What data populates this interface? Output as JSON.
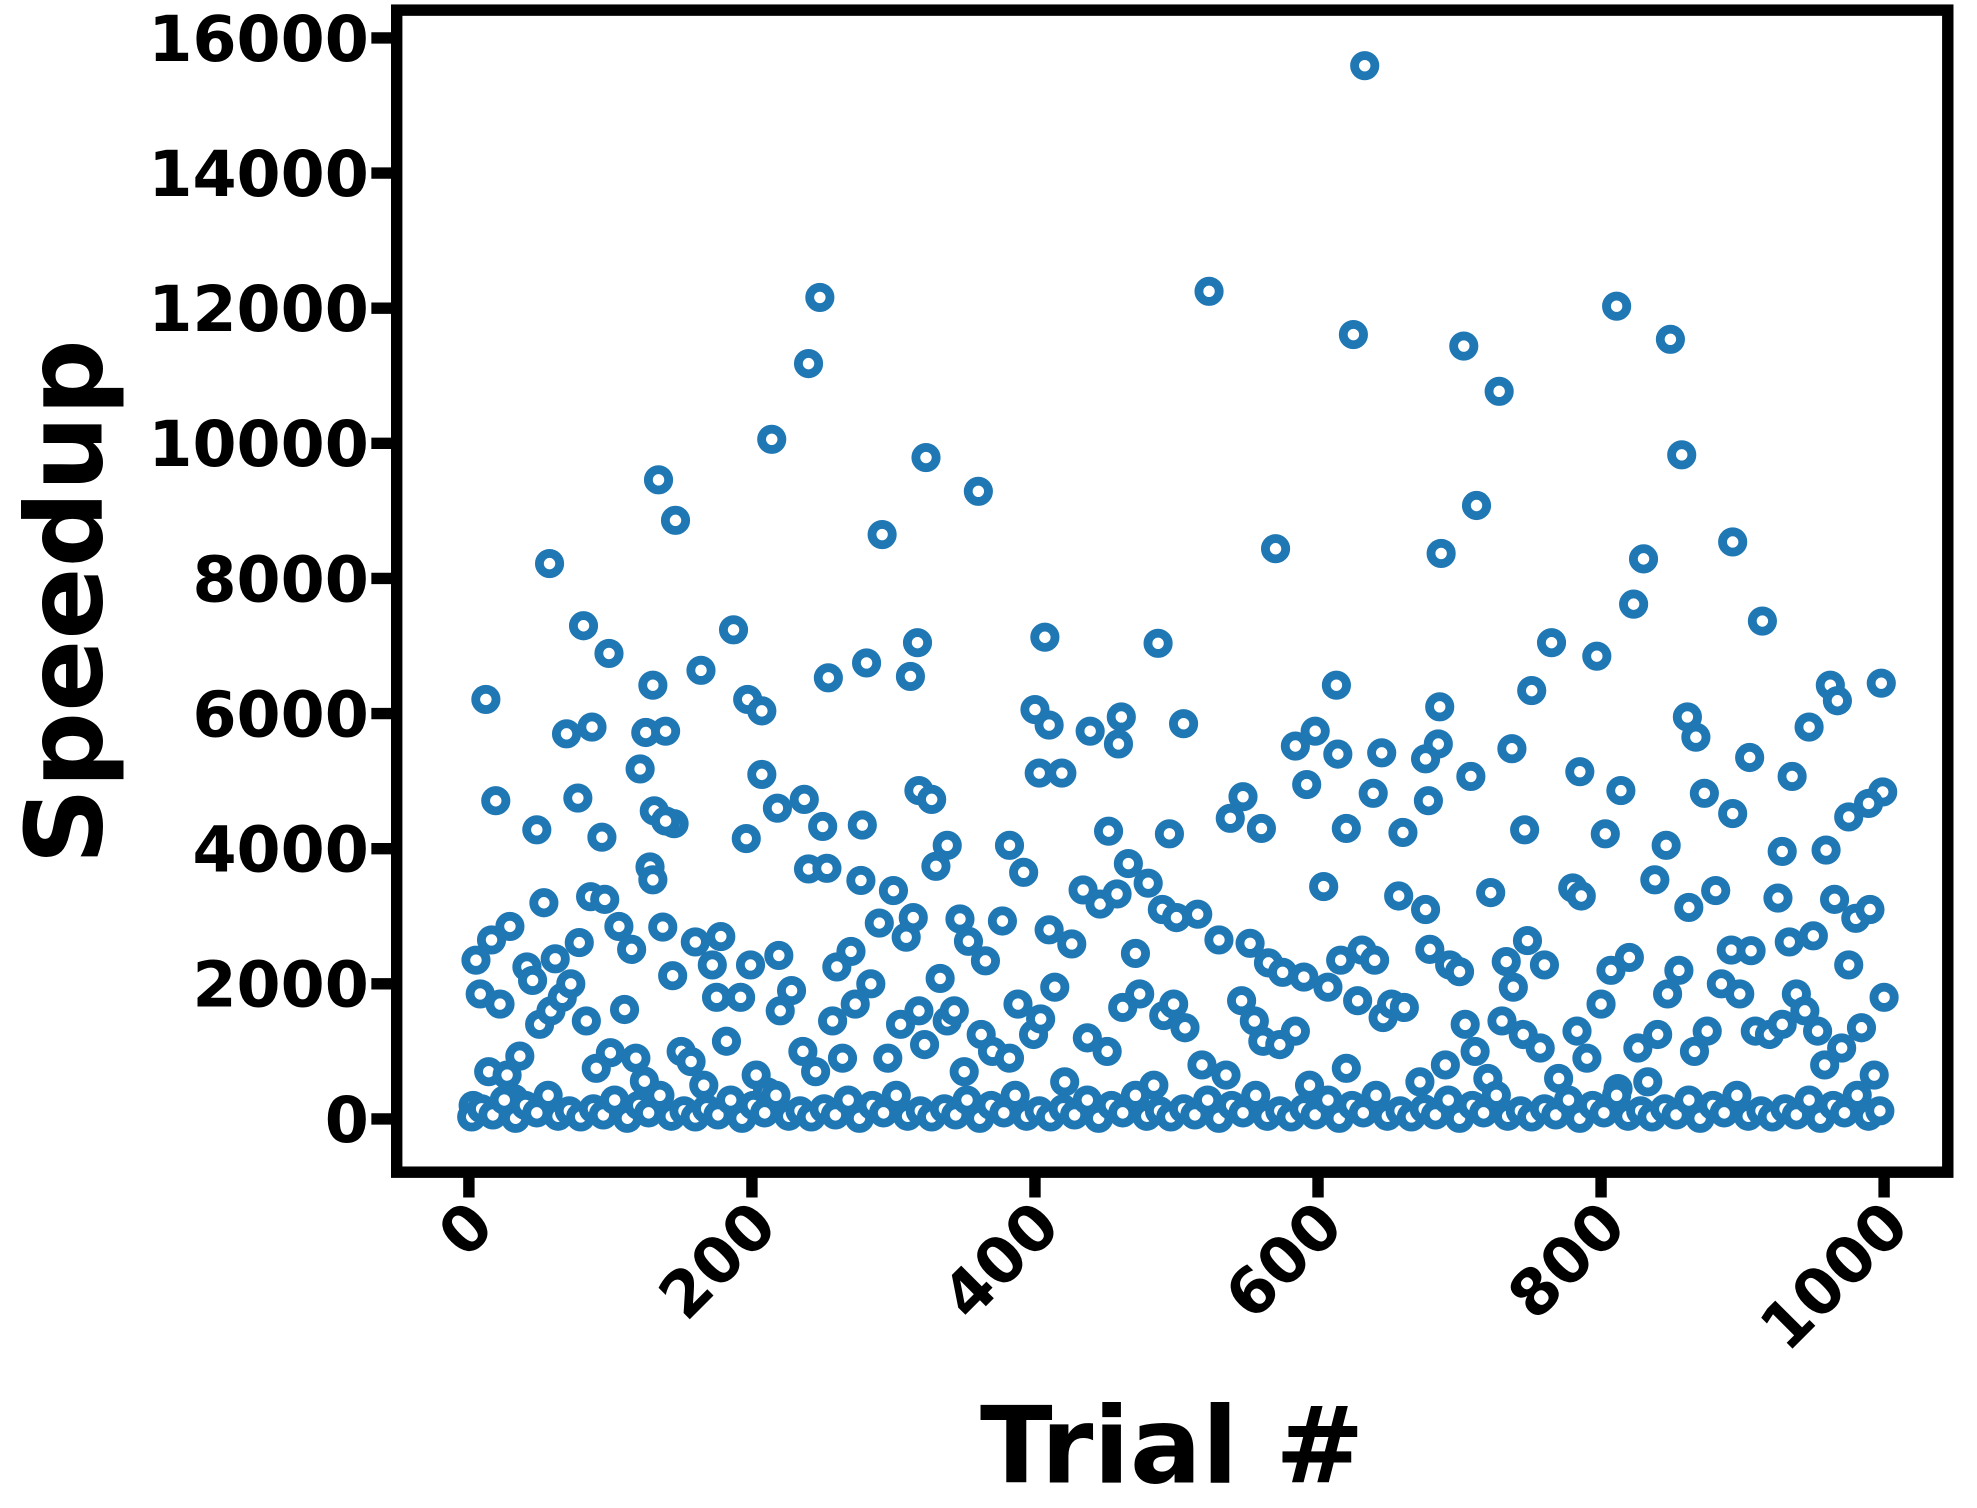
{
  "chart_data": {
    "type": "scatter",
    "xlabel": "Trial #",
    "ylabel": "Speedup",
    "color": "#1f77b4",
    "xlim": [
      -51,
      1045
    ],
    "ylim": [
      -788,
      16412
    ],
    "xticks": [
      0,
      200,
      400,
      600,
      800,
      1000
    ],
    "yticks": [
      0,
      2000,
      4000,
      6000,
      8000,
      10000,
      12000,
      14000,
      16000
    ],
    "x": [
      633,
      248,
      523,
      240,
      625,
      703,
      811,
      849,
      728,
      214,
      323,
      134,
      360,
      857,
      146,
      712,
      292,
      570,
      687,
      893,
      830,
      57,
      81,
      823,
      914,
      187,
      407,
      317,
      487,
      765,
      99,
      281,
      797,
      164,
      254,
      312,
      130,
      613,
      998,
      962,
      751,
      12,
      197,
      207,
      967,
      686,
      400,
      461,
      861,
      505,
      410,
      69,
      87,
      125,
      139,
      439,
      598,
      947,
      867,
      685,
      584,
      459,
      737,
      645,
      614,
      676,
      905,
      121,
      207,
      419,
      403,
      708,
      785,
      935,
      592,
      318,
      327,
      547,
      999,
      873,
      814,
      639,
      678,
      19,
      77,
      237,
      218,
      989,
      131,
      893,
      975,
      538,
      145,
      139,
      250,
      278,
      48,
      560,
      620,
      660,
      746,
      803,
      495,
      452,
      196,
      94,
      382,
      338,
      846,
      959,
      928,
      16,
      29,
      41,
      53,
      61,
      78,
      86,
      96,
      106,
      115,
      128,
      130,
      137,
      144,
      160,
      172,
      178,
      5,
      199,
      219,
      240,
      253,
      260,
      270,
      277,
      290,
      300,
      309,
      314,
      330,
      333,
      347,
      353,
      365,
      377,
      392,
      410,
      426,
      434,
      446,
      458,
      466,
      471,
      480,
      490,
      500,
      515,
      530,
      552,
      565,
      575,
      590,
      604,
      616,
      631,
      640,
      657,
      676,
      679,
      693,
      700,
      722,
      733,
      748,
      760,
      780,
      786,
      807,
      820,
      838,
      855,
      862,
      881,
      892,
      906,
      925,
      933,
      950,
      965,
      980,
      990,
      975,
      3,
      8,
      14,
      22,
      27,
      32,
      36,
      45,
      50,
      58,
      66,
      72,
      83,
      90,
      100,
      110,
      118,
      124,
      150,
      157,
      166,
      175,
      182,
      192,
      203,
      211,
      220,
      228,
      236,
      245,
      257,
      264,
      273,
      284,
      296,
      305,
      318,
      322,
      338,
      343,
      350,
      362,
      370,
      382,
      388,
      399,
      404,
      414,
      421,
      437,
      451,
      462,
      474,
      484,
      491,
      498,
      506,
      518,
      535,
      546,
      555,
      561,
      573,
      584,
      594,
      607,
      620,
      628,
      646,
      652,
      661,
      672,
      690,
      704,
      711,
      720,
      730,
      738,
      745,
      757,
      770,
      783,
      790,
      800,
      812,
      826,
      833,
      840,
      847,
      866,
      875,
      885,
      898,
      909,
      919,
      928,
      938,
      944,
      953,
      958,
      970,
      984,
      993,
      1000,
      2,
      9,
      17,
      25,
      33,
      40,
      48,
      56,
      63,
      71,
      79,
      88,
      95,
      103,
      112,
      120,
      127,
      135,
      143,
      152,
      160,
      168,
      176,
      185,
      193,
      201,
      209,
      217,
      226,
      234,
      242,
      251,
      259,
      268,
      276,
      285,
      293,
      302,
      310,
      319,
      327,
      336,
      344,
      352,
      361,
      369,
      378,
      386,
      394,
      403,
      411,
      420,
      428,
      437,
      445,
      454,
      462,
      471,
      479,
      488,
      496,
      505,
      513,
      522,
      530,
      539,
      547,
      556,
      564,
      573,
      581,
      590,
      598,
      607,
      615,
      624,
      632,
      641,
      649,
      658,
      666,
      675,
      683,
      692,
      700,
      709,
      717,
      726,
      734,
      743,
      751,
      760,
      768,
      777,
      785,
      794,
      802,
      811,
      819,
      828,
      836,
      845,
      853,
      862,
      870,
      879,
      887,
      896,
      904,
      913,
      921,
      930,
      938,
      947,
      955,
      964,
      972,
      981,
      989,
      997
    ],
    "values": [
      15590,
      12160,
      12250,
      11180,
      11610,
      11440,
      12030,
      11540,
      10770,
      10060,
      9790,
      9460,
      9290,
      9830,
      8860,
      9080,
      8650,
      8440,
      8370,
      8540,
      8290,
      8220,
      7300,
      7620,
      7370,
      7240,
      7130,
      7050,
      7040,
      7050,
      6890,
      6750,
      6850,
      6640,
      6530,
      6550,
      6420,
      6420,
      6450,
      6420,
      6340,
      6210,
      6210,
      6040,
      6190,
      6100,
      6060,
      5950,
      5950,
      5850,
      5830,
      5700,
      5800,
      5720,
      5740,
      5740,
      5740,
      5800,
      5650,
      5550,
      5520,
      5550,
      5480,
      5420,
      5400,
      5330,
      5350,
      5180,
      5100,
      5120,
      5120,
      5070,
      5140,
      5070,
      4950,
      4860,
      4730,
      4770,
      4840,
      4820,
      4860,
      4820,
      4710,
      4710,
      4750,
      4730,
      4600,
      4670,
      4560,
      4520,
      4470,
      4450,
      4370,
      4410,
      4330,
      4350,
      4280,
      4300,
      4300,
      4240,
      4280,
      4220,
      4220,
      4260,
      4150,
      4170,
      4050,
      4050,
      4050,
      3980,
      3960,
      2650,
      2850,
      2250,
      3200,
      2370,
      2610,
      3290,
      3250,
      2850,
      2510,
      3730,
      3540,
      2840,
      2120,
      2620,
      2280,
      2700,
      2350,
      2280,
      2420,
      3700,
      3710,
      2250,
      2480,
      3530,
      2900,
      3380,
      2690,
      2980,
      3740,
      2080,
      2960,
      2630,
      2340,
      2930,
      3650,
      2800,
      2590,
      3390,
      3180,
      3330,
      3780,
      2450,
      3490,
      3100,
      2980,
      3030,
      2650,
      2600,
      2310,
      2170,
      2100,
      3440,
      2350,
      2500,
      2350,
      3300,
      3100,
      2510,
      2280,
      2180,
      3350,
      2330,
      2640,
      2280,
      3420,
      3300,
      2200,
      2390,
      3540,
      2200,
      3130,
      3380,
      2500,
      2490,
      3270,
      2620,
      2710,
      3250,
      2970,
      3100,
      2280,
      200,
      1850,
      700,
      1700,
      650,
      300,
      930,
      2050,
      1400,
      1600,
      1800,
      2000,
      1450,
      750,
      980,
      1620,
      900,
      560,
      1000,
      850,
      500,
      1800,
      1150,
      1800,
      650,
      400,
      1600,
      1900,
      1000,
      700,
      1450,
      900,
      1700,
      2000,
      900,
      1400,
      1600,
      1100,
      1450,
      1600,
      700,
      1250,
      1000,
      900,
      1700,
      1250,
      1480,
      1950,
      550,
      1200,
      1000,
      1650,
      1850,
      500,
      1530,
      1700,
      1350,
      800,
      650,
      1750,
      1450,
      1150,
      1100,
      1300,
      500,
      1950,
      750,
      1750,
      1500,
      1700,
      1650,
      550,
      800,
      1400,
      1000,
      600,
      1450,
      1950,
      1250,
      1050,
      600,
      1300,
      900,
      1700,
      450,
      1050,
      550,
      1250,
      1850,
      1000,
      1300,
      2000,
      1850,
      1300,
      1250,
      1400,
      1850,
      1600,
      1300,
      800,
      1050,
      1350,
      650,
      1800,
      30,
      150,
      60,
      280,
      10,
      200,
      90,
      350,
      40,
      120,
      30,
      150,
      60,
      280,
      10,
      200,
      90,
      350,
      40,
      120,
      30,
      150,
      60,
      280,
      10,
      200,
      90,
      350,
      40,
      120,
      30,
      150,
      60,
      280,
      10,
      200,
      90,
      350,
      40,
      120,
      30,
      150,
      60,
      280,
      10,
      200,
      90,
      350,
      40,
      120,
      30,
      150,
      60,
      280,
      10,
      200,
      90,
      350,
      40,
      120,
      30,
      150,
      60,
      280,
      10,
      200,
      90,
      350,
      40,
      120,
      30,
      150,
      60,
      280,
      10,
      200,
      90,
      350,
      40,
      120,
      30,
      150,
      60,
      280,
      10,
      200,
      90,
      350,
      40,
      120,
      30,
      150,
      60,
      280,
      10,
      200,
      90,
      350,
      40,
      120,
      30,
      150,
      60,
      280,
      10,
      200,
      90,
      350,
      40,
      120,
      30,
      150,
      60,
      280,
      10,
      200,
      90,
      350,
      40,
      120
    ]
  }
}
